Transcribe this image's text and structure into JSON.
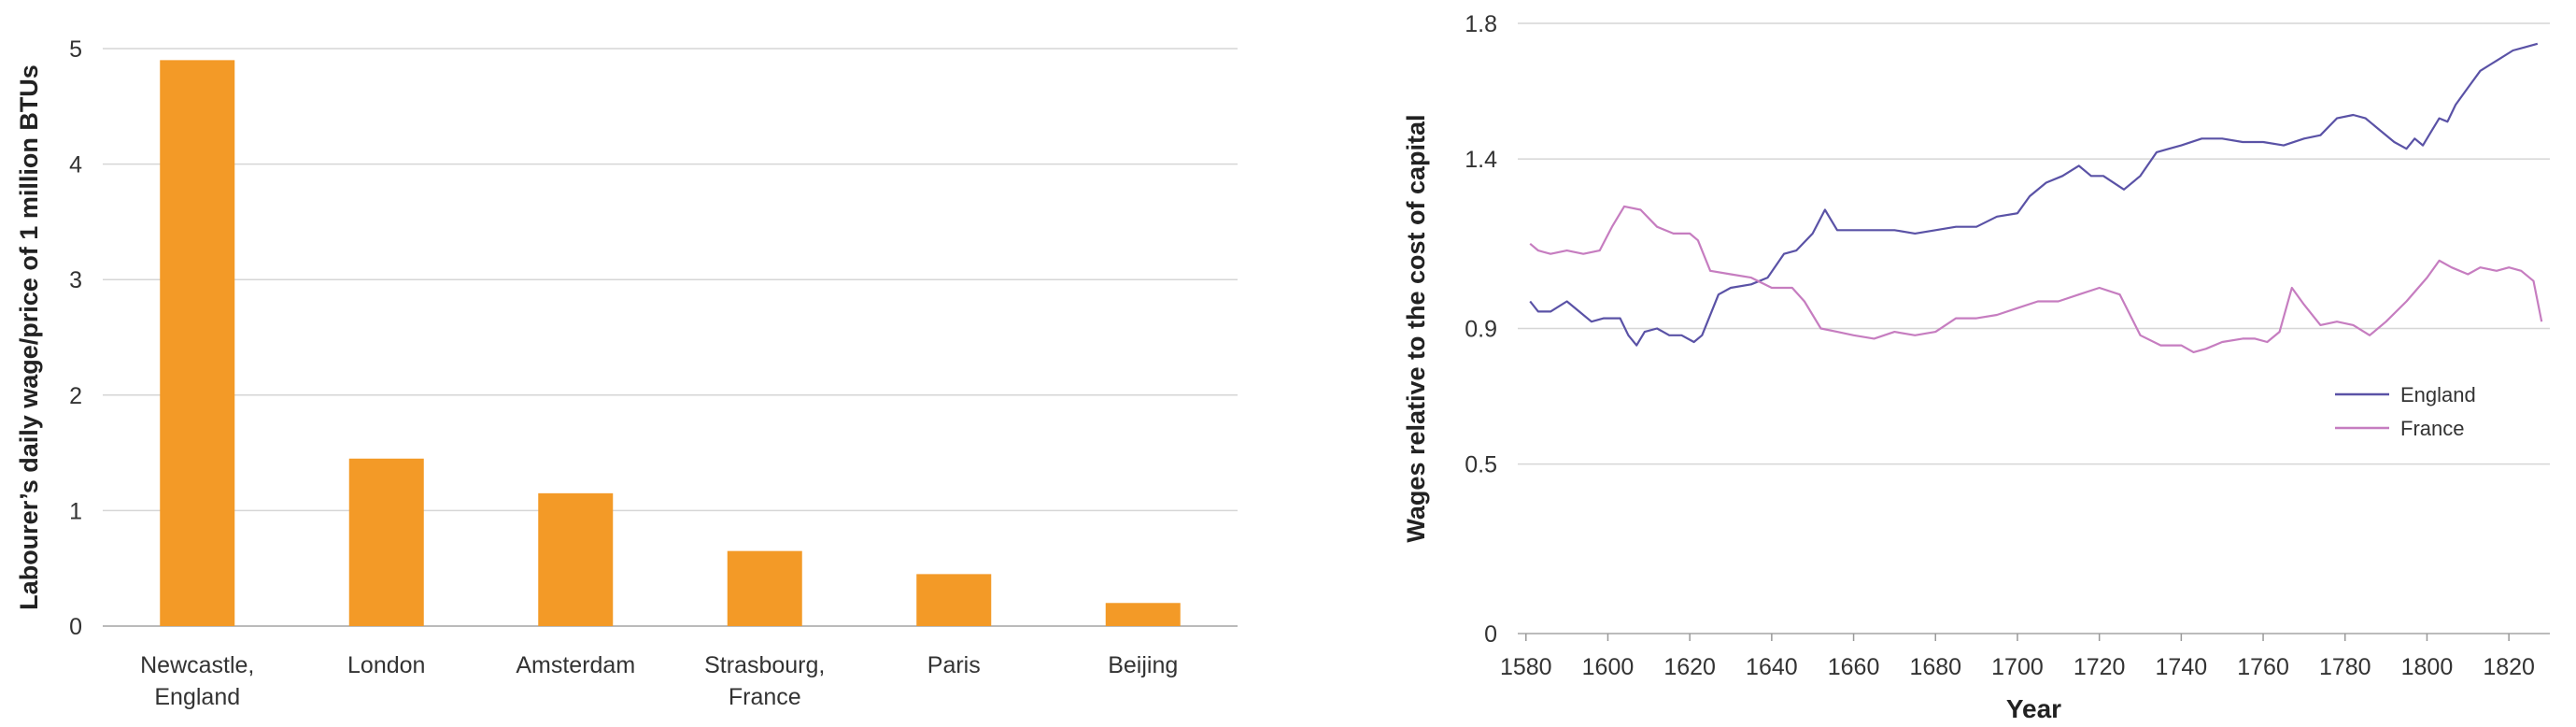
{
  "chart_data": [
    {
      "type": "bar",
      "categories": [
        "Newcastle,\nEngland",
        "London",
        "Amsterdam",
        "Strasbourg,\nFrance",
        "Paris",
        "Beijing"
      ],
      "values": [
        4.9,
        1.45,
        1.15,
        0.65,
        0.45,
        0.2
      ],
      "ylabel": "Labourer’s daily wage/price of 1 million BTUs",
      "xlabel": "",
      "ylim": [
        0,
        5
      ],
      "yticks": [
        0,
        1,
        2,
        3,
        4,
        5
      ],
      "grid": true,
      "bar_color": "#f39a27"
    },
    {
      "type": "line",
      "xlabel": "Year",
      "ylabel": "Wages relative to the cost of capital",
      "xlim": [
        1578,
        1830
      ],
      "ylim": [
        0,
        1.8
      ],
      "xticks": [
        1580,
        1600,
        1620,
        1640,
        1660,
        1680,
        1700,
        1720,
        1740,
        1760,
        1780,
        1800,
        1820
      ],
      "yticks": [
        0,
        0.5,
        0.9,
        1.4,
        1.8
      ],
      "yticks_labels": [
        "0",
        "0.5",
        "0.9",
        "1.4",
        "1.8"
      ],
      "grid": true,
      "legend": "right",
      "series": [
        {
          "name": "England",
          "color": "#5a52a6",
          "x": [
            1581,
            1583,
            1586,
            1590,
            1593,
            1596,
            1599,
            1603,
            1605,
            1607,
            1609,
            1612,
            1615,
            1618,
            1621,
            1623,
            1627,
            1630,
            1635,
            1639,
            1643,
            1646,
            1650,
            1653,
            1656,
            1660,
            1665,
            1670,
            1675,
            1680,
            1685,
            1690,
            1695,
            1700,
            1703,
            1707,
            1711,
            1715,
            1718,
            1721,
            1726,
            1730,
            1734,
            1737,
            1740,
            1745,
            1750,
            1755,
            1760,
            1765,
            1770,
            1774,
            1778,
            1782,
            1785,
            1788,
            1792,
            1795,
            1797,
            1799,
            1801,
            1803,
            1805,
            1807,
            1810,
            1813,
            1817,
            1821,
            1824,
            1827
          ],
          "y": [
            0.98,
            0.95,
            0.95,
            0.98,
            0.95,
            0.92,
            0.93,
            0.93,
            0.88,
            0.85,
            0.89,
            0.9,
            0.88,
            0.88,
            0.86,
            0.88,
            1.0,
            1.02,
            1.03,
            1.05,
            1.12,
            1.13,
            1.18,
            1.25,
            1.19,
            1.19,
            1.19,
            1.19,
            1.18,
            1.19,
            1.2,
            1.2,
            1.23,
            1.24,
            1.29,
            1.33,
            1.35,
            1.38,
            1.35,
            1.35,
            1.31,
            1.35,
            1.42,
            1.43,
            1.44,
            1.46,
            1.46,
            1.45,
            1.45,
            1.44,
            1.46,
            1.47,
            1.52,
            1.53,
            1.52,
            1.49,
            1.45,
            1.43,
            1.46,
            1.44,
            1.48,
            1.52,
            1.51,
            1.56,
            1.61,
            1.66,
            1.69,
            1.72,
            1.73,
            1.74
          ]
        },
        {
          "name": "France",
          "color": "#c67dc0",
          "x": [
            1581,
            1583,
            1586,
            1590,
            1594,
            1598,
            1601,
            1604,
            1608,
            1612,
            1616,
            1620,
            1622,
            1625,
            1630,
            1635,
            1640,
            1645,
            1648,
            1652,
            1656,
            1660,
            1665,
            1670,
            1675,
            1680,
            1685,
            1690,
            1695,
            1700,
            1705,
            1710,
            1715,
            1720,
            1725,
            1730,
            1735,
            1740,
            1743,
            1746,
            1750,
            1755,
            1758,
            1761,
            1764,
            1767,
            1770,
            1774,
            1778,
            1782,
            1786,
            1790,
            1795,
            1800,
            1803,
            1806,
            1810,
            1813,
            1817,
            1820,
            1823,
            1826,
            1828
          ],
          "y": [
            1.15,
            1.13,
            1.12,
            1.13,
            1.12,
            1.13,
            1.2,
            1.26,
            1.25,
            1.2,
            1.18,
            1.18,
            1.16,
            1.07,
            1.06,
            1.05,
            1.02,
            1.02,
            0.98,
            0.9,
            0.89,
            0.88,
            0.87,
            0.89,
            0.88,
            0.89,
            0.93,
            0.93,
            0.94,
            0.96,
            0.98,
            0.98,
            1.0,
            1.02,
            1.0,
            0.88,
            0.85,
            0.85,
            0.83,
            0.84,
            0.86,
            0.87,
            0.87,
            0.86,
            0.89,
            1.02,
            0.97,
            0.91,
            0.92,
            0.91,
            0.88,
            0.92,
            0.98,
            1.05,
            1.1,
            1.08,
            1.06,
            1.08,
            1.07,
            1.08,
            1.07,
            1.04,
            0.92
          ]
        }
      ]
    }
  ]
}
